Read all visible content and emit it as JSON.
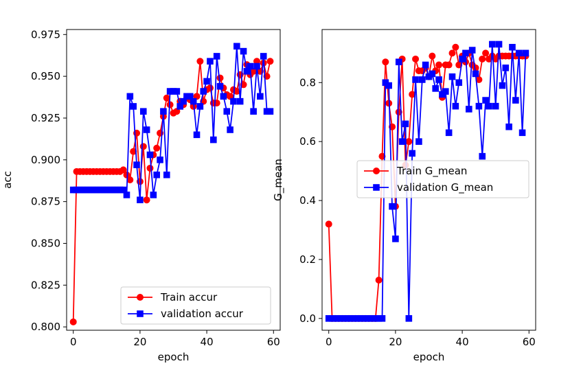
{
  "chart_data": [
    {
      "type": "line",
      "xlabel": "epoch",
      "ylabel": "acc",
      "xlim": [
        -2,
        62
      ],
      "ylim": [
        0.798,
        0.978
      ],
      "xticks": [
        0,
        20,
        40,
        60
      ],
      "yticks": [
        0.8,
        0.825,
        0.85,
        0.875,
        0.9,
        0.925,
        0.95,
        0.975
      ],
      "ytick_labels": [
        "0.800",
        "0.825",
        "0.850",
        "0.875",
        "0.900",
        "0.925",
        "0.950",
        "0.975"
      ],
      "legend_loc": "lower right",
      "series": [
        {
          "name": "Train accur",
          "color": "#ff0000",
          "marker": "circle",
          "x": [
            0,
            1,
            2,
            3,
            4,
            5,
            6,
            7,
            8,
            9,
            10,
            11,
            12,
            13,
            14,
            15,
            16,
            17,
            18,
            19,
            20,
            21,
            22,
            23,
            24,
            25,
            26,
            27,
            28,
            29,
            30,
            31,
            32,
            33,
            34,
            35,
            36,
            37,
            38,
            39,
            40,
            41,
            42,
            43,
            44,
            45,
            46,
            47,
            48,
            49,
            50,
            51,
            52,
            53,
            54,
            55,
            56,
            57,
            58,
            59
          ],
          "y": [
            0.803,
            0.893,
            0.893,
            0.893,
            0.893,
            0.893,
            0.893,
            0.893,
            0.893,
            0.893,
            0.893,
            0.893,
            0.893,
            0.893,
            0.893,
            0.894,
            0.891,
            0.888,
            0.905,
            0.916,
            0.887,
            0.908,
            0.876,
            0.895,
            0.903,
            0.907,
            0.916,
            0.926,
            0.937,
            0.933,
            0.928,
            0.929,
            0.935,
            0.933,
            0.937,
            0.936,
            0.932,
            0.938,
            0.959,
            0.935,
            0.942,
            0.943,
            0.934,
            0.934,
            0.949,
            0.943,
            0.939,
            0.938,
            0.942,
            0.941,
            0.951,
            0.945,
            0.957,
            0.951,
            0.953,
            0.959,
            0.953,
            0.958,
            0.95,
            0.959
          ]
        },
        {
          "name": "validation accur",
          "color": "#0000ff",
          "marker": "square",
          "x": [
            0,
            1,
            2,
            3,
            4,
            5,
            6,
            7,
            8,
            9,
            10,
            11,
            12,
            13,
            14,
            15,
            16,
            17,
            18,
            19,
            20,
            21,
            22,
            23,
            24,
            25,
            26,
            27,
            28,
            29,
            30,
            31,
            32,
            33,
            34,
            35,
            36,
            37,
            38,
            39,
            40,
            41,
            42,
            43,
            44,
            45,
            46,
            47,
            48,
            49,
            50,
            51,
            52,
            53,
            54,
            55,
            56,
            57,
            58,
            59
          ],
          "y": [
            0.882,
            0.882,
            0.882,
            0.882,
            0.882,
            0.882,
            0.882,
            0.882,
            0.882,
            0.882,
            0.882,
            0.882,
            0.882,
            0.882,
            0.882,
            0.882,
            0.879,
            0.938,
            0.932,
            0.897,
            0.876,
            0.929,
            0.918,
            0.903,
            0.879,
            0.891,
            0.9,
            0.929,
            0.891,
            0.941,
            0.941,
            0.941,
            0.932,
            0.935,
            0.938,
            0.938,
            0.935,
            0.915,
            0.932,
            0.941,
            0.947,
            0.959,
            0.912,
            0.962,
            0.944,
            0.938,
            0.929,
            0.918,
            0.935,
            0.968,
            0.935,
            0.965,
            0.953,
            0.956,
            0.929,
            0.956,
            0.938,
            0.962,
            0.929,
            0.929
          ]
        }
      ]
    },
    {
      "type": "line",
      "xlabel": "epoch",
      "ylabel": "G_mean",
      "xlim": [
        -2,
        62
      ],
      "ylim": [
        -0.04,
        0.98
      ],
      "xticks": [
        0,
        20,
        40,
        60
      ],
      "yticks": [
        0.0,
        0.2,
        0.4,
        0.6,
        0.8
      ],
      "ytick_labels": [
        "0.0",
        "0.2",
        "0.4",
        "0.6",
        "0.8"
      ],
      "legend_loc": "center right",
      "series": [
        {
          "name": "Train G_mean",
          "color": "#ff0000",
          "marker": "circle",
          "x": [
            0,
            1,
            2,
            3,
            4,
            5,
            6,
            7,
            8,
            9,
            10,
            11,
            12,
            13,
            14,
            15,
            16,
            17,
            18,
            19,
            20,
            21,
            22,
            23,
            24,
            25,
            26,
            27,
            28,
            29,
            30,
            31,
            32,
            33,
            34,
            35,
            36,
            37,
            38,
            39,
            40,
            41,
            42,
            43,
            44,
            45,
            46,
            47,
            48,
            49,
            50,
            51,
            52,
            53,
            54,
            55,
            56,
            57,
            58,
            59
          ],
          "y": [
            0.32,
            0.0,
            0.0,
            0.0,
            0.0,
            0.0,
            0.0,
            0.0,
            0.0,
            0.0,
            0.0,
            0.0,
            0.0,
            0.0,
            0.0,
            0.13,
            0.55,
            0.87,
            0.73,
            0.65,
            0.38,
            0.7,
            0.88,
            0.52,
            0.6,
            0.76,
            0.88,
            0.84,
            0.84,
            0.85,
            0.82,
            0.89,
            0.84,
            0.86,
            0.75,
            0.86,
            0.86,
            0.9,
            0.92,
            0.86,
            0.89,
            0.87,
            0.9,
            0.86,
            0.85,
            0.81,
            0.88,
            0.9,
            0.88,
            0.89,
            0.88,
            0.89,
            0.89,
            0.89,
            0.89,
            0.89,
            0.89,
            0.89,
            0.89,
            0.89
          ]
        },
        {
          "name": "validation G_mean",
          "color": "#0000ff",
          "marker": "square",
          "x": [
            0,
            1,
            2,
            3,
            4,
            5,
            6,
            7,
            8,
            9,
            10,
            11,
            12,
            13,
            14,
            15,
            16,
            17,
            18,
            19,
            20,
            21,
            22,
            23,
            24,
            25,
            26,
            27,
            28,
            29,
            30,
            31,
            32,
            33,
            34,
            35,
            36,
            37,
            38,
            39,
            40,
            41,
            42,
            43,
            44,
            45,
            46,
            47,
            48,
            49,
            50,
            51,
            52,
            53,
            54,
            55,
            56,
            57,
            58,
            59
          ],
          "y": [
            0.0,
            0.0,
            0.0,
            0.0,
            0.0,
            0.0,
            0.0,
            0.0,
            0.0,
            0.0,
            0.0,
            0.0,
            0.0,
            0.0,
            0.0,
            0.0,
            0.0,
            0.8,
            0.79,
            0.38,
            0.27,
            0.87,
            0.6,
            0.66,
            0.0,
            0.56,
            0.81,
            0.6,
            0.81,
            0.86,
            0.82,
            0.83,
            0.78,
            0.81,
            0.76,
            0.77,
            0.63,
            0.82,
            0.72,
            0.8,
            0.88,
            0.9,
            0.71,
            0.91,
            0.83,
            0.72,
            0.55,
            0.74,
            0.72,
            0.93,
            0.72,
            0.93,
            0.79,
            0.85,
            0.65,
            0.92,
            0.74,
            0.9,
            0.63,
            0.9
          ]
        }
      ]
    }
  ]
}
